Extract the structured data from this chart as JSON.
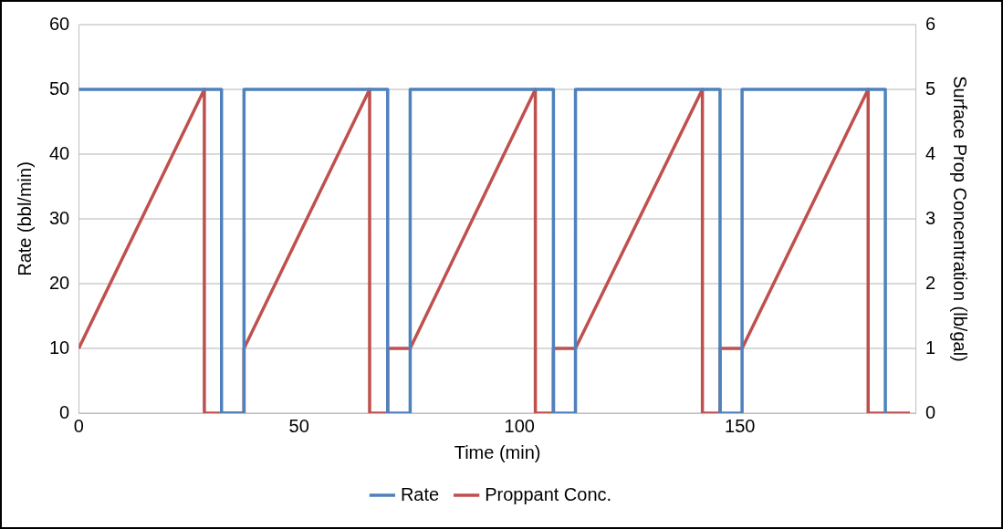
{
  "chart_data": {
    "type": "line",
    "xlabel": "Time (min)",
    "ylabel": "Rate (bbl/min)",
    "y2label": "Surface Prop Concentration (lb/gal)",
    "xlim": [
      0,
      190
    ],
    "xticks": [
      0,
      50,
      100,
      150
    ],
    "ylim": [
      0,
      60
    ],
    "yticks": [
      0,
      10,
      20,
      30,
      40,
      50,
      60
    ],
    "y2lim": [
      0,
      6
    ],
    "y2ticks": [
      0,
      1,
      2,
      3,
      4,
      5,
      6
    ],
    "grid": "y",
    "legend": "bottom",
    "marker": "none",
    "line_style": "solid",
    "series": [
      {
        "name": "Rate",
        "color": "#4f81bd",
        "x": [
          0,
          32.4,
          32.4,
          37.5,
          37.5,
          70.1,
          70.1,
          75.2,
          75.2,
          107.7,
          107.7,
          112.7,
          112.7,
          145.5,
          145.5,
          150.5,
          150.5,
          183,
          183
        ],
        "values": [
          50,
          50,
          0,
          0,
          50,
          50,
          0,
          0,
          50,
          50,
          0,
          0,
          50,
          50,
          0,
          0,
          50,
          50,
          0
        ]
      },
      {
        "name": "Proppant Conc.",
        "color": "#c0504d",
        "axis": "y2",
        "x": [
          0,
          28.5,
          28.5,
          37.5,
          37.5,
          66,
          66,
          70.1,
          70.1,
          75.2,
          103.6,
          103.6,
          107.7,
          107.7,
          112.7,
          141.5,
          141.5,
          145.5,
          145.5,
          150.5,
          179.1,
          179.1,
          188.6
        ],
        "values": [
          1,
          5,
          0,
          0,
          1,
          5,
          0,
          0,
          1,
          1,
          5,
          0,
          0,
          1,
          1,
          5,
          0,
          0,
          1,
          1,
          5,
          0,
          0
        ]
      }
    ]
  }
}
